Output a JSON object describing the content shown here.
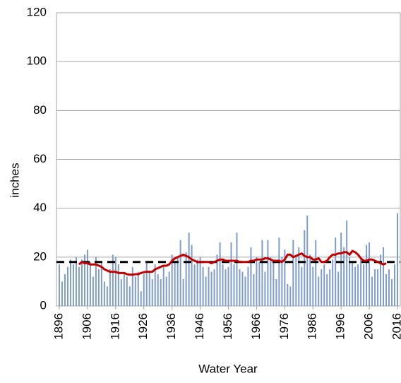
{
  "chart_data": {
    "type": "bar",
    "xlabel": "Water Year",
    "ylabel": "inches",
    "color": "#7f9ccb",
    "x": [
      1896,
      1897,
      1898,
      1899,
      1900,
      1901,
      1902,
      1903,
      1904,
      1905,
      1906,
      1907,
      1908,
      1909,
      1910,
      1911,
      1912,
      1913,
      1914,
      1915,
      1916,
      1917,
      1918,
      1919,
      1920,
      1921,
      1922,
      1923,
      1924,
      1925,
      1926,
      1927,
      1928,
      1929,
      1930,
      1931,
      1932,
      1933,
      1934,
      1935,
      1936,
      1937,
      1938,
      1939,
      1940,
      1941,
      1942,
      1943,
      1944,
      1945,
      1946,
      1947,
      1948,
      1949,
      1950,
      1951,
      1952,
      1953,
      1954,
      1955,
      1956,
      1957,
      1958,
      1959,
      1960,
      1961,
      1962,
      1963,
      1964,
      1965,
      1966,
      1967,
      1968,
      1969,
      1970,
      1971,
      1972,
      1973,
      1974,
      1975,
      1976,
      1977,
      1978,
      1979,
      1980,
      1981,
      1982,
      1983,
      1984,
      1985,
      1986,
      1987,
      1988,
      1989,
      1990,
      1991,
      1992,
      1993,
      1994,
      1995,
      1996,
      1997,
      1998,
      1999,
      2000,
      2001,
      2002,
      2003,
      2004,
      2005,
      2006,
      2007,
      2008,
      2009,
      2010,
      2011,
      2012,
      2013,
      2014,
      2015,
      2016
    ],
    "values": [
      17,
      10,
      13,
      16,
      19,
      17,
      20,
      16,
      19,
      21,
      23,
      18,
      12,
      20,
      15,
      18,
      10,
      8,
      15,
      21,
      20,
      17,
      11,
      13,
      12,
      8,
      16,
      12,
      14,
      6,
      13,
      18,
      14,
      11,
      17,
      13,
      11,
      16,
      12,
      14,
      21,
      18,
      20,
      27,
      11,
      22,
      30,
      25,
      17,
      19,
      20,
      16,
      12,
      16,
      14,
      15,
      21,
      26,
      17,
      15,
      16,
      26,
      17,
      30,
      15,
      14,
      12,
      16,
      24,
      13,
      20,
      18,
      27,
      14,
      27,
      20,
      18,
      11,
      28,
      20,
      23,
      9,
      8,
      27,
      21,
      24,
      16,
      31,
      37,
      21,
      16,
      27,
      12,
      15,
      17,
      13,
      15,
      19,
      28,
      14,
      30,
      24,
      35,
      20,
      18,
      16,
      17,
      19,
      17,
      25,
      26,
      12,
      15,
      15,
      21,
      24,
      13,
      15,
      11,
      17,
      38
    ],
    "moving_average": {
      "color": "#c00000",
      "values": [
        null,
        null,
        null,
        null,
        null,
        null,
        null,
        17,
        18,
        17.5,
        17.5,
        17,
        17,
        17,
        16.5,
        16,
        15,
        14.5,
        14,
        14,
        14,
        13.5,
        13.5,
        13.5,
        13,
        12.8,
        12.8,
        13,
        13,
        13.5,
        13.8,
        14,
        14,
        14,
        15,
        15.5,
        16,
        16.5,
        16.5,
        17,
        18.5,
        19.5,
        20,
        20.5,
        21,
        20.5,
        20,
        19,
        18.5,
        18,
        18,
        18,
        18,
        18,
        17.5,
        18,
        18.5,
        19,
        19,
        18.5,
        18.5,
        18.5,
        18.5,
        18.5,
        18,
        18,
        18,
        18,
        18.5,
        18.5,
        19,
        19,
        19,
        19.5,
        19.5,
        19,
        18.5,
        18.5,
        18.5,
        18,
        19,
        21,
        21,
        20,
        20.5,
        21,
        21.5,
        20.5,
        20,
        20,
        19,
        19,
        19.5,
        18,
        18,
        18.5,
        20,
        21,
        21,
        21.5,
        21.5,
        22,
        22,
        21,
        22.5,
        22,
        21,
        19.5,
        18.5,
        18.5,
        19,
        19,
        18.5,
        18,
        17.5,
        17,
        17.5,
        null,
        null,
        null,
        null
      ]
    },
    "mean_line": {
      "value": 18,
      "color": "#000000"
    },
    "xlim": [
      1895,
      2017
    ],
    "xticks": [
      1896,
      1906,
      1916,
      1926,
      1936,
      1946,
      1956,
      1966,
      1976,
      1986,
      1996,
      2006,
      2016
    ],
    "ylim": [
      0,
      120
    ],
    "yticks": [
      0,
      20,
      40,
      60,
      80,
      100,
      120
    ],
    "grid": true
  }
}
